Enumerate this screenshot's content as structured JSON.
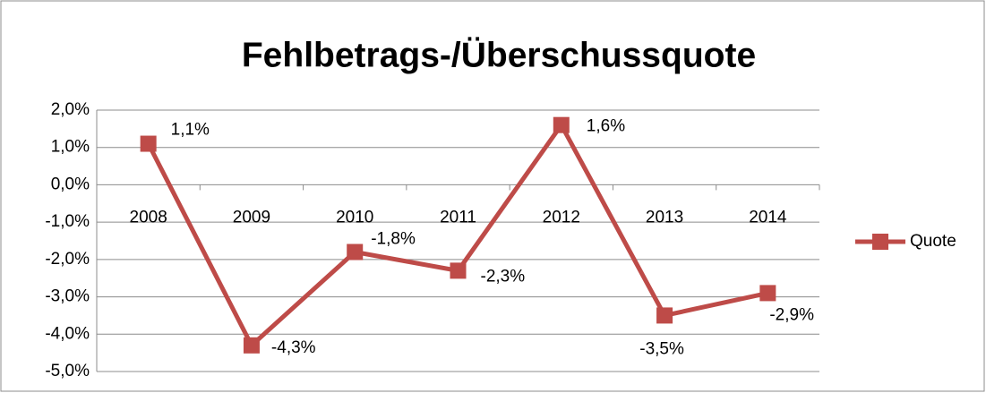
{
  "chart_data": {
    "type": "line",
    "title": "Fehlbetrags-/Überschussquote",
    "categories": [
      "2008",
      "2009",
      "2010",
      "2011",
      "2012",
      "2013",
      "2014"
    ],
    "series": [
      {
        "name": "Quote",
        "color": "#be4b48",
        "values": [
          1.1,
          -4.3,
          -1.8,
          -2.3,
          1.6,
          -3.5,
          -2.9
        ],
        "value_labels": [
          "1,1%",
          "-4,3%",
          "-1,8%",
          "-2,3%",
          "1,6%",
          "-3,5%",
          "-2,9%"
        ]
      }
    ],
    "ylim": [
      -5,
      2
    ],
    "yticks": [
      {
        "value": -5,
        "label": "-5,0%"
      },
      {
        "value": -4,
        "label": "-4,0%"
      },
      {
        "value": -3,
        "label": "-3,0%"
      },
      {
        "value": -2,
        "label": "-2,0%"
      },
      {
        "value": -1,
        "label": "-1,0%"
      },
      {
        "value": 0,
        "label": "0,0%"
      },
      {
        "value": 1,
        "label": "1,0%"
      },
      {
        "value": 2,
        "label": "2,0%"
      }
    ],
    "grid": true,
    "legend": "right"
  }
}
